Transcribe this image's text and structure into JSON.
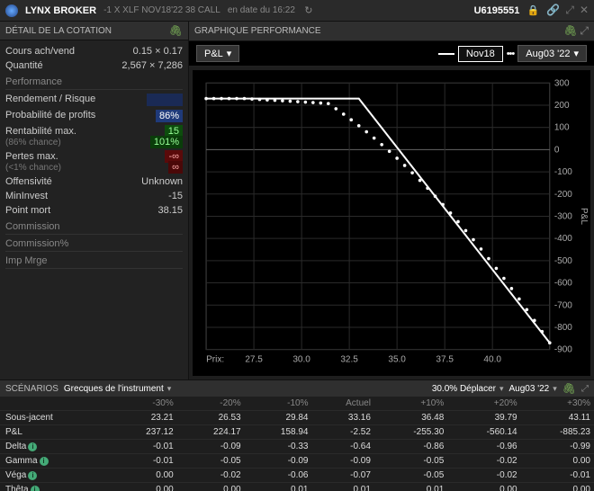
{
  "titlebar": {
    "broker": "LYNX BROKER",
    "position": "-1 X XLF NOV18'22 38 CALL",
    "timestamp": "en date du 16:22",
    "account": "U6195551"
  },
  "leftPanel": {
    "header": "DÉTAIL DE LA COTATION",
    "bidAskLabel": "Cours ach/vend",
    "bidAsk": "0.15 × 0.17",
    "qtyLabel": "Quantité",
    "qty": "2,567 × 7,286",
    "performance": "Performance",
    "riskReturn": {
      "label": "Rendement / Risque",
      "value": ""
    },
    "probProfit": {
      "label": "Probabilité de profits",
      "value": "86%"
    },
    "maxReturn": {
      "label": "Rentabilité max.",
      "sub": "(86% chance)",
      "v1": "15",
      "v2": "101%"
    },
    "maxLoss": {
      "label": "Pertes max.",
      "sub": "(<1% chance)",
      "v1": "-∞",
      "v2": "∞"
    },
    "offense": {
      "label": "Offensivité",
      "value": "Unknown"
    },
    "minInvest": {
      "label": "MinInvest",
      "value": "-15"
    },
    "breakeven": {
      "label": "Point mort",
      "value": "38.15"
    },
    "commission": "Commission",
    "commissionPct": "Commission%",
    "impMrge": "Imp Mrge"
  },
  "chart": {
    "header": "GRAPHIQUE PERFORMANCE",
    "pnl": "P&L",
    "series1": "Nov18",
    "series2": "Aug03 '22",
    "xlabel": "Prix:",
    "ylabel": "P&L",
    "xlim": [
      25,
      43
    ],
    "ylim": [
      -900,
      300
    ],
    "xticks": [
      27.5,
      30.0,
      32.5,
      35.0,
      37.5,
      40.0
    ],
    "yticks": [
      300,
      200,
      100,
      0,
      -100,
      -200,
      -300,
      -400,
      -500,
      -600,
      -700,
      -800,
      -900
    ],
    "solid": [
      [
        25,
        230
      ],
      [
        33,
        230
      ],
      [
        43,
        -870
      ]
    ],
    "dotsBreak": 31
  },
  "scenarios": {
    "header": "SCÉNARIOS",
    "greeksLabel": "Grecques de l'instrument",
    "moveLabel": "30.0% Déplacer",
    "dateLabel": "Aug03 '22",
    "columns": [
      "-30%",
      "-20%",
      "-10%",
      "Actuel",
      "+10%",
      "+20%",
      "+30%"
    ],
    "rows": [
      {
        "label": "Sous-jacent",
        "vals": [
          "23.21",
          "26.53",
          "29.84",
          "33.16",
          "36.48",
          "39.79",
          "43.11"
        ]
      },
      {
        "label": "P&L",
        "vals": [
          "237.12",
          "224.17",
          "158.94",
          "-2.52",
          "-255.30",
          "-560.14",
          "-885.23"
        ]
      },
      {
        "label": "Delta",
        "info": true,
        "vals": [
          "-0.01",
          "-0.09",
          "-0.33",
          "-0.64",
          "-0.86",
          "-0.96",
          "-0.99"
        ]
      },
      {
        "label": "Gamma",
        "info": true,
        "vals": [
          "-0.01",
          "-0.05",
          "-0.09",
          "-0.09",
          "-0.05",
          "-0.02",
          "0.00"
        ]
      },
      {
        "label": "Véga",
        "info": true,
        "vals": [
          "0.00",
          "-0.02",
          "-0.06",
          "-0.07",
          "-0.05",
          "-0.02",
          "-0.01"
        ]
      },
      {
        "label": "Thêta",
        "info": true,
        "vals": [
          "0.00",
          "0.00",
          "0.01",
          "0.01",
          "0.01",
          "0.00",
          "0.00"
        ]
      }
    ]
  },
  "colors": {
    "bg": "#1a1a1a",
    "panel": "#222",
    "chartBg": "#000",
    "grid": "#2a2a2a",
    "line": "#ffffff"
  }
}
